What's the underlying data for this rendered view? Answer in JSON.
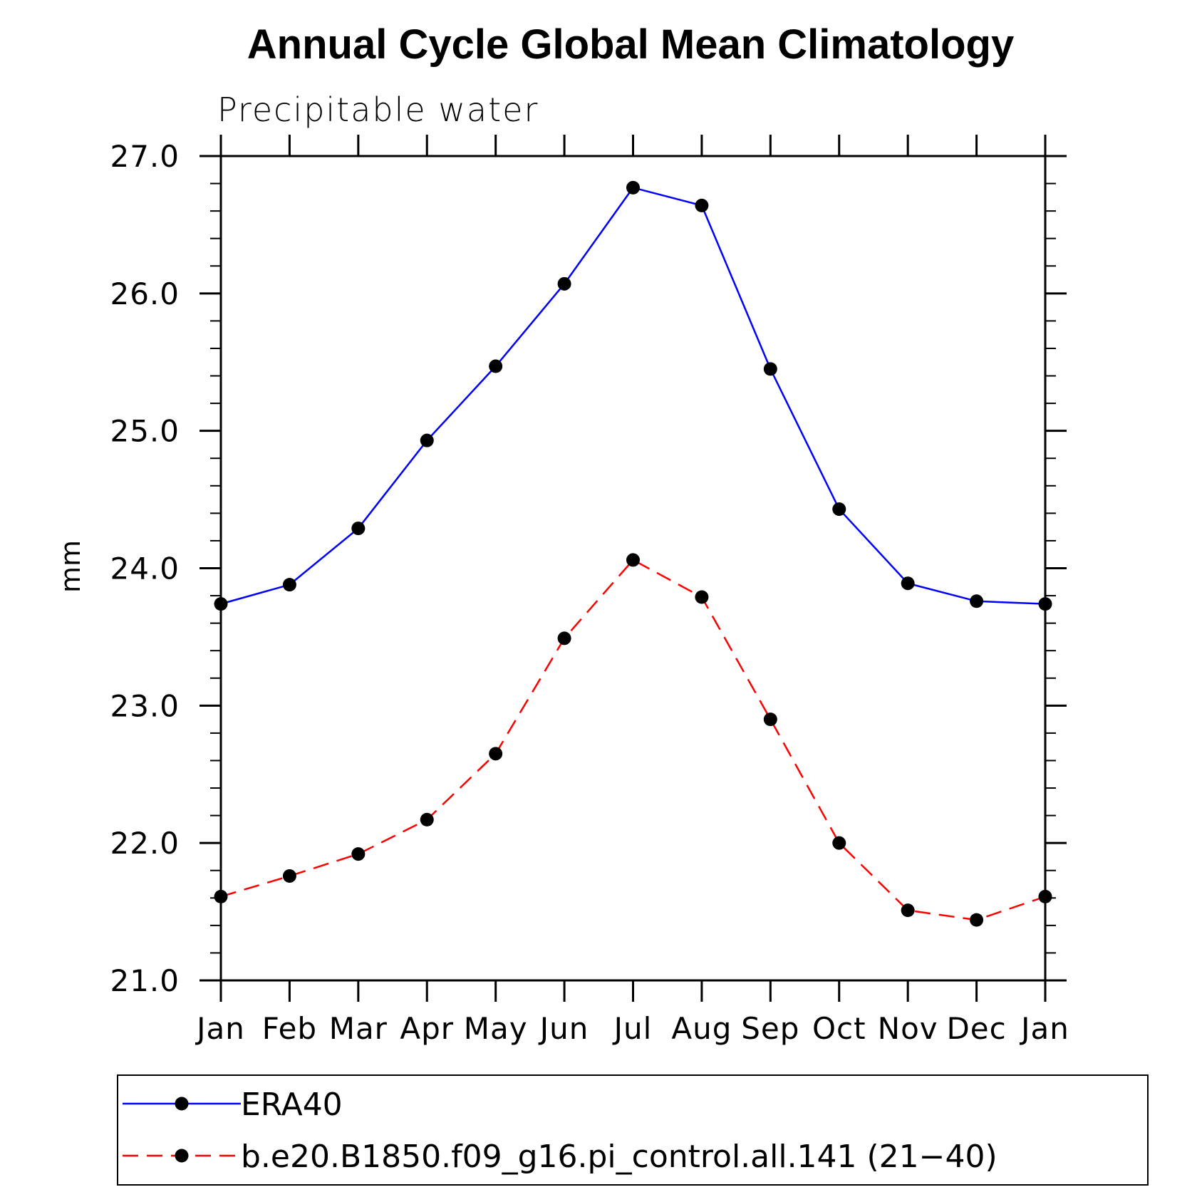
{
  "chart_data": {
    "type": "line",
    "title": "Annual Cycle Global Mean Climatology",
    "subtitle": "Precipitable water",
    "xlabel": "",
    "ylabel": "mm",
    "categories": [
      "Jan",
      "Feb",
      "Mar",
      "Apr",
      "May",
      "Jun",
      "Jul",
      "Aug",
      "Sep",
      "Oct",
      "Nov",
      "Dec",
      "Jan"
    ],
    "ylim": [
      21.0,
      27.0
    ],
    "yticks": [
      "21.0",
      "22.0",
      "23.0",
      "24.0",
      "25.0",
      "26.0",
      "27.0"
    ],
    "minor_tick_step": 0.2,
    "grid": false,
    "legend_position": "bottom",
    "series": [
      {
        "name": "ERA40",
        "color": "#0000ff",
        "line_style": "solid",
        "marker_color": "#000000",
        "values": [
          23.74,
          23.88,
          24.29,
          24.93,
          25.47,
          26.07,
          26.77,
          26.64,
          25.45,
          24.43,
          23.89,
          23.76,
          23.74
        ]
      },
      {
        "name": "b.e20.B1850.f09_g16.pi_control.all.141 (21−40)",
        "color": "#ff0000",
        "line_style": "dashed",
        "marker_color": "#000000",
        "values": [
          21.61,
          21.76,
          21.92,
          22.17,
          22.65,
          23.49,
          24.06,
          23.79,
          22.9,
          22.0,
          21.51,
          21.44,
          21.61
        ]
      }
    ]
  }
}
